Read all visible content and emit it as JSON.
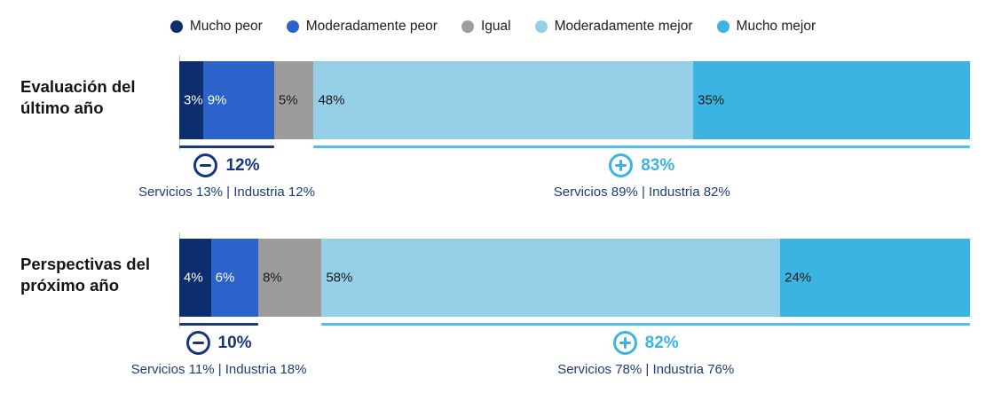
{
  "colors": {
    "negative_accent": "#17357c",
    "positive_accent": "#3cb4e2",
    "negative_underline": "#1c3a6e",
    "positive_underline": "#4fbde8",
    "axis_line": "#c4c4c4",
    "detail_text": "#1d3c78",
    "legend_text": "#212121",
    "background": "#ffffff"
  },
  "chart_data": {
    "type": "bar",
    "variant": "horizontal-stacked",
    "unit": "%",
    "xlim": [
      0,
      100
    ],
    "grid": false,
    "legend_position": "top",
    "categories": [
      "Evaluación del último año",
      "Perspectivas del próximo año"
    ],
    "series": [
      {
        "name": "Mucho peor",
        "color": "#0d2e6e",
        "label_color": "#ffffff",
        "values": [
          3,
          4
        ]
      },
      {
        "name": "Moderadamente peor",
        "color": "#2b63cb",
        "label_color": "#ffffff",
        "values": [
          9,
          6
        ]
      },
      {
        "name": "Igual",
        "color": "#9c9c9c",
        "label_color": "#1a1a1a",
        "values": [
          5,
          8
        ]
      },
      {
        "name": "Moderadamente mejor",
        "color": "#96cfe8",
        "label_color": "#1a1a1a",
        "values": [
          48,
          58
        ]
      },
      {
        "name": "Mucho mejor",
        "color": "#3cb4e2",
        "label_color": "#1a1a1a",
        "values": [
          35,
          24
        ]
      }
    ],
    "annotations": [
      {
        "category": "Evaluación del último año",
        "negative_total": "12%",
        "negative_detail": "Servicios 13% | Industria 12%",
        "positive_total": "83%",
        "positive_detail": "Servicios 89% | Industria 82%"
      },
      {
        "category": "Perspectivas del próximo año",
        "negative_total": "10%",
        "negative_detail": "Servicios 11% | Industria 18%",
        "positive_total": "82%",
        "positive_detail": "Servicios 78% | Industria 76%"
      }
    ]
  }
}
